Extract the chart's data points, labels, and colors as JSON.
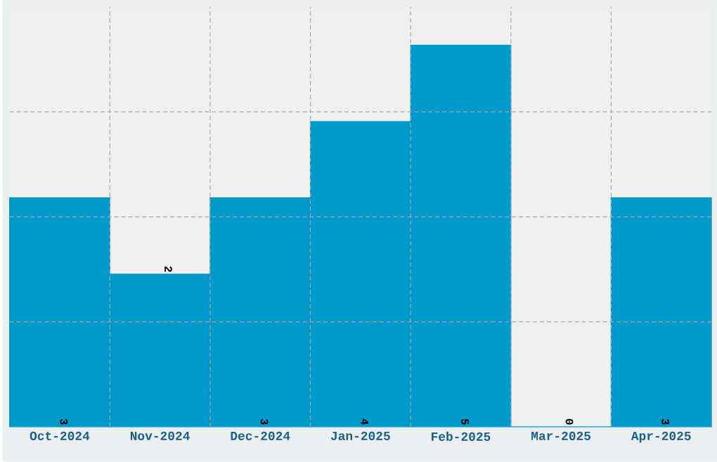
{
  "chart_data": {
    "type": "bar",
    "categories": [
      "Oct-2024",
      "Nov-2024",
      "Dec-2024",
      "Jan-2025",
      "Feb-2025",
      "Mar-2025",
      "Apr-2025"
    ],
    "values": [
      3,
      2,
      3,
      4,
      5,
      0,
      3
    ],
    "color": "#0099cc",
    "ylim": [
      0,
      5.5
    ],
    "yticks": [
      {
        "value": 1.375,
        "label": null
      },
      {
        "value": 2.75,
        "label": null
      },
      {
        "value": 4.125,
        "label": null
      }
    ],
    "tick_labels": "x",
    "grid": true,
    "data_labels": true
  }
}
